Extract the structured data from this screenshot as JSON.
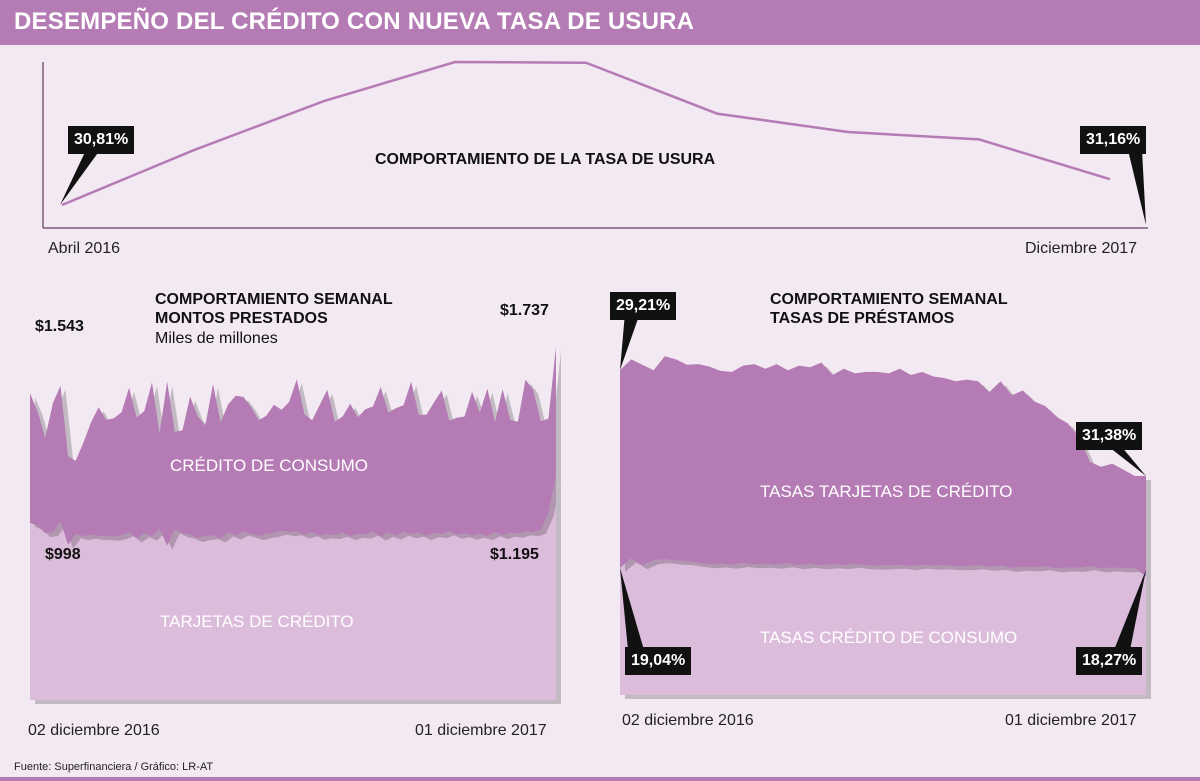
{
  "title": "DESEMPEÑO DEL CRÉDITO CON NUEVA TASA DE USURA",
  "source": "Fuente: Superfinanciera / Gráfico: LR-AT",
  "colors": {
    "banner": "#b57bb4",
    "line": "#b57bb4",
    "dark_area": "#b57bb4",
    "light_area": "#dcbcdb",
    "callout": "#111111"
  },
  "chart_data": [
    {
      "type": "line",
      "title": "COMPORTAMIENTO DE LA TASA DE USURA",
      "x_start_label": "Abril 2016",
      "x_end_label": "Diciembre 2017",
      "series": [
        {
          "values": [
            30.81,
            31.55,
            32.22,
            32.75,
            32.74,
            32.05,
            31.8,
            31.7,
            31.16
          ]
        }
      ],
      "start_value": "30,81%",
      "end_value": "31,16%"
    },
    {
      "type": "area",
      "title": "COMPORTAMIENTO SEMANAL MONTOS PRESTADOS",
      "subtitle": "Miles de millones",
      "x_start_label": "02 diciembre 2016",
      "x_end_label": "01 diciembre 2017",
      "series": [
        {
          "name": "CRÉDITO DE CONSUMO",
          "values": [
            1543,
            1466,
            1355,
            1501,
            1574,
            1278,
            1259,
            1335,
            1420,
            1484,
            1430,
            1438,
            1463,
            1566,
            1440,
            1468,
            1588,
            1375,
            1592,
            1380,
            1387,
            1529,
            1446,
            1407,
            1581,
            1421,
            1496,
            1532,
            1527,
            1484,
            1429,
            1448,
            1494,
            1473,
            1506,
            1601,
            1455,
            1429,
            1493,
            1557,
            1423,
            1445,
            1498,
            1442,
            1475,
            1487,
            1569,
            1462,
            1480,
            1492,
            1591,
            1452,
            1452,
            1504,
            1554,
            1427,
            1440,
            1445,
            1549,
            1461,
            1562,
            1422,
            1560,
            1430,
            1423,
            1600,
            1557,
            1425,
            1436,
            1737
          ],
          "start_label": "$1.543",
          "end_label": "$1.737"
        },
        {
          "name": "TARJETAS DE CRÉDITO",
          "values": [
            998,
            985,
            955,
            958,
            1004,
            906,
            950,
            942,
            948,
            942,
            942,
            939,
            946,
            958,
            932,
            954,
            940,
            972,
            902,
            970,
            954,
            948,
            934,
            942,
            946,
            932,
            958,
            944,
            960,
            952,
            942,
            951,
            955,
            965,
            958,
            962,
            948,
            958,
            944,
            950,
            946,
            956,
            942,
            952,
            948,
            961,
            940,
            956,
            944,
            960,
            950,
            956,
            942,
            955,
            950,
            962,
            948,
            954,
            944,
            952,
            942,
            958,
            946,
            956,
            952,
            962,
            958,
            968,
            1040,
            1195
          ],
          "start_label": "$998",
          "end_label": "$1.195"
        }
      ]
    },
    {
      "type": "area",
      "title": "COMPORTAMIENTO SEMANAL TASAS DE PRÉSTAMOS",
      "x_start_label": "02 diciembre 2016",
      "x_end_label": "01 diciembre 2017",
      "series": [
        {
          "name": "TASAS TARJETAS DE CRÉDITO",
          "values": [
            29.21,
            29.55,
            29.38,
            29.2,
            29.65,
            29.55,
            29.38,
            29.4,
            29.32,
            29.18,
            29.15,
            29.35,
            29.4,
            29.25,
            29.4,
            29.2,
            29.35,
            29.3,
            29.45,
            29.05,
            29.25,
            29.1,
            29.15,
            29.15,
            29.1,
            29.25,
            29.05,
            29.15,
            29.0,
            28.95,
            28.85,
            28.9,
            28.85,
            28.5,
            28.85,
            28.4,
            28.55,
            28.2,
            28.05,
            27.7,
            27.5,
            27.05,
            26.25,
            26.1,
            26.2,
            26.0,
            25.8,
            31.38
          ],
          "start_label": "29,21%",
          "end_label": "31,38%"
        },
        {
          "name": "TASAS CRÉDITO DE CONSUMO",
          "values": [
            19.04,
            19.95,
            19.3,
            19.8,
            19.9,
            19.75,
            19.7,
            19.55,
            19.4,
            19.48,
            19.35,
            19.52,
            19.4,
            19.45,
            19.35,
            19.5,
            19.3,
            19.45,
            19.3,
            19.4,
            19.32,
            19.45,
            19.3,
            19.25,
            19.3,
            19.35,
            19.2,
            19.35,
            19.25,
            19.3,
            19.2,
            19.22,
            19.3,
            19.15,
            19.25,
            19.05,
            19.15,
            19.1,
            19.2,
            19.0,
            19.1,
            19.05,
            19.2,
            19.0,
            19.1,
            19.0,
            19.05,
            18.27
          ],
          "start_label": "19,04%",
          "end_label": "18,27%"
        }
      ]
    }
  ]
}
